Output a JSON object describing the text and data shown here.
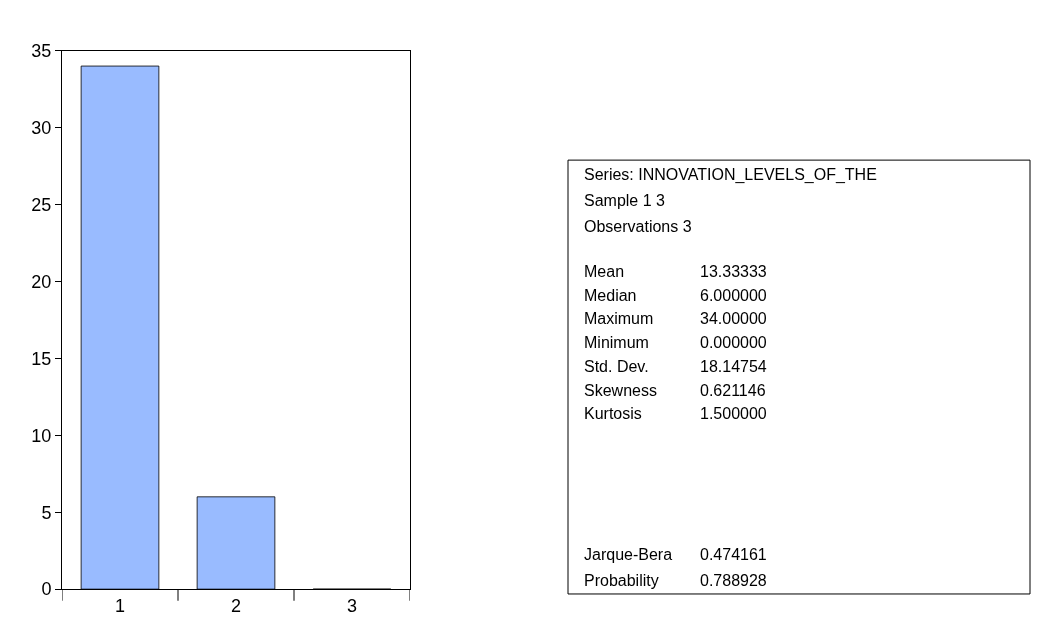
{
  "chart_data": [
    {
      "type": "bar",
      "categories": [
        "1",
        "2",
        "3"
      ],
      "values": [
        34,
        6,
        0
      ],
      "color": "#99bbff",
      "ylim": [
        0,
        35
      ],
      "yticks": [
        0,
        5,
        10,
        15,
        20,
        25,
        30,
        35
      ]
    },
    {
      "type": "other",
      "annotations": [
        "Series: INNOVATION_LEVELS_OF_THE",
        "Sample 1 3",
        "Observations 3",
        "Mean",
        "13.33333",
        "Median",
        "6.000000",
        "Maximum",
        "34.00000",
        "Minimum",
        "0.000000",
        "Std. Dev.",
        "18.14754",
        "Skewness",
        "0.621146",
        "Kurtosis",
        "1.500000",
        "Jarque-Bera",
        "0.474161",
        "Probability",
        "0.788928"
      ]
    }
  ]
}
